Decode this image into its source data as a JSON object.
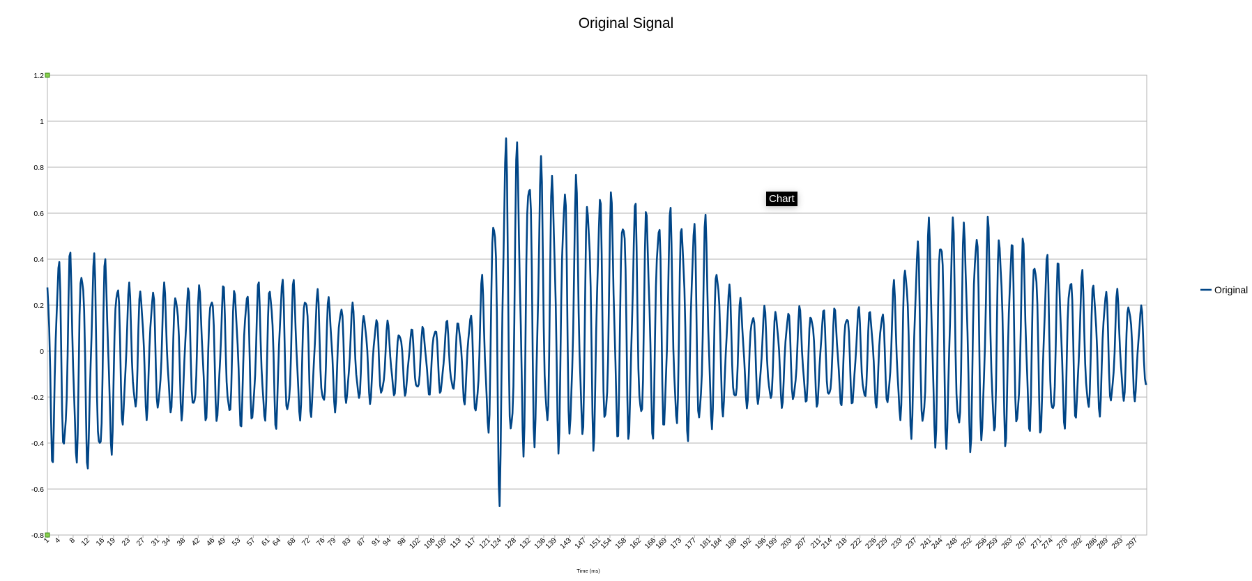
{
  "chart_data": {
    "type": "line",
    "title": "Original Signal",
    "xlabel": "Time (ms)",
    "ylabel": "",
    "ylim": [
      -0.8,
      1.2
    ],
    "yticks": [
      "1.2",
      "1",
      "0.8",
      "0.6",
      "0.4",
      "0.2",
      "0",
      "-0.2",
      "-0.4",
      "-0.6",
      "-0.8"
    ],
    "xticks": [
      "1",
      "4",
      "8",
      "12",
      "16",
      "19",
      "23",
      "27",
      "31",
      "34",
      "38",
      "42",
      "46",
      "49",
      "53",
      "57",
      "61",
      "64",
      "68",
      "72",
      "76",
      "79",
      "83",
      "87",
      "91",
      "94",
      "98",
      "102",
      "106",
      "109",
      "113",
      "117",
      "121",
      "124",
      "128",
      "132",
      "136",
      "139",
      "143",
      "147",
      "151",
      "154",
      "158",
      "162",
      "166",
      "169",
      "173",
      "177",
      "181",
      "184",
      "188",
      "192",
      "196",
      "199",
      "203",
      "207",
      "211",
      "214",
      "218",
      "222",
      "226",
      "229",
      "233",
      "237",
      "241",
      "244",
      "248",
      "252",
      "256",
      "259",
      "263",
      "267",
      "271",
      "274",
      "278",
      "282",
      "286",
      "289",
      "293",
      "297"
    ],
    "grid": true,
    "legend_placement": "right",
    "series": [
      {
        "name": "Original",
        "color": "#004586",
        "x_range": [
          1,
          300
        ],
        "points_per_ms": 4,
        "envelope": [
          [
            1,
            0.45,
            -0.5
          ],
          [
            16,
            0.45,
            -0.55
          ],
          [
            23,
            0.3,
            -0.3
          ],
          [
            34,
            0.3,
            -0.3
          ],
          [
            57,
            0.3,
            -0.35
          ],
          [
            64,
            0.35,
            -0.35
          ],
          [
            83,
            0.22,
            -0.25
          ],
          [
            98,
            0.1,
            -0.2
          ],
          [
            113,
            0.15,
            -0.2
          ],
          [
            117,
            0.2,
            -0.3
          ],
          [
            121,
            0.45,
            -0.4
          ],
          [
            124,
            1.0,
            -0.7
          ],
          [
            128,
            0.95,
            -0.5
          ],
          [
            136,
            0.85,
            -0.45
          ],
          [
            147,
            0.75,
            -0.45
          ],
          [
            166,
            0.65,
            -0.4
          ],
          [
            181,
            0.6,
            -0.4
          ],
          [
            184,
            0.35,
            -0.3
          ],
          [
            192,
            0.2,
            -0.25
          ],
          [
            229,
            0.2,
            -0.25
          ],
          [
            233,
            0.4,
            -0.35
          ],
          [
            241,
            0.6,
            -0.45
          ],
          [
            256,
            0.6,
            -0.45
          ],
          [
            278,
            0.4,
            -0.35
          ],
          [
            300,
            0.2,
            -0.2
          ]
        ]
      }
    ]
  },
  "ui": {
    "tooltip": "Chart"
  }
}
